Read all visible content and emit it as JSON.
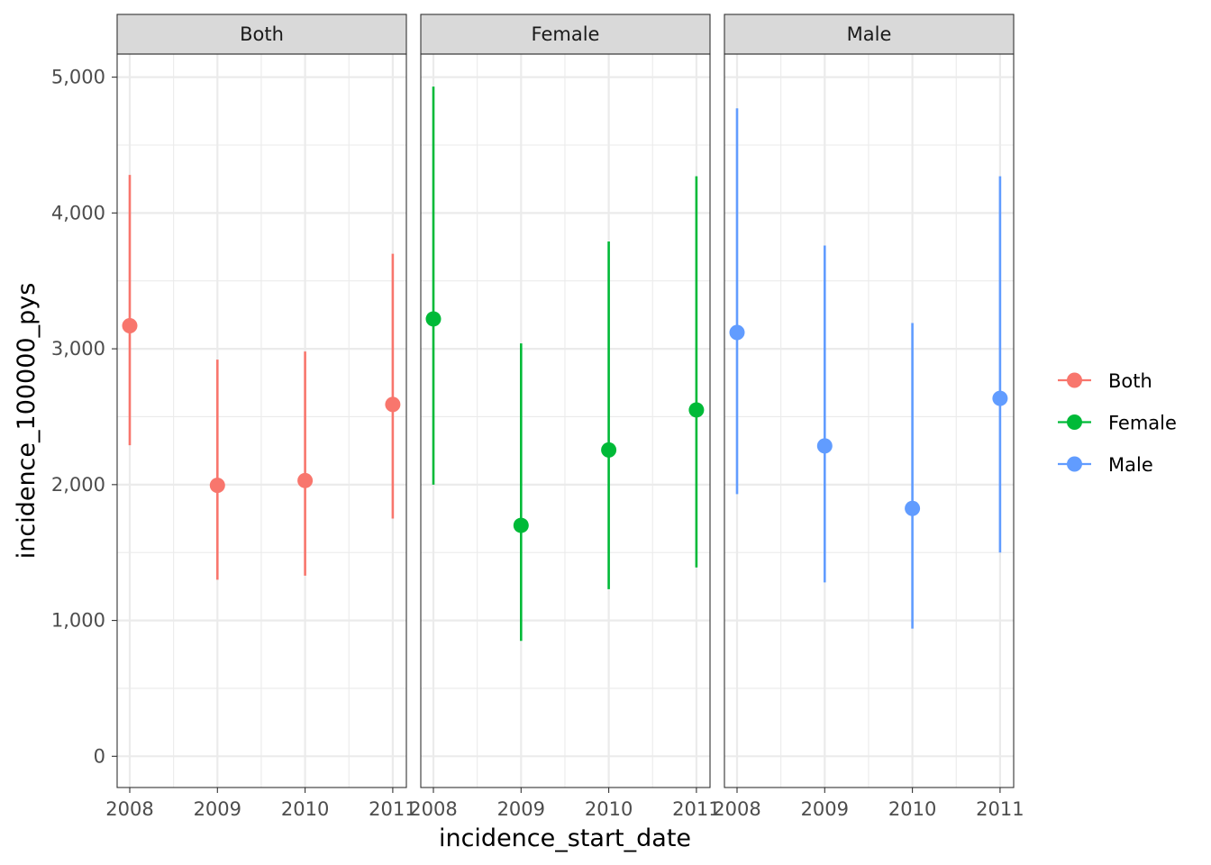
{
  "chart_data": {
    "type": "scatter",
    "xlabel": "incidence_start_date",
    "ylabel": "incidence_100000_pys",
    "ylim": [
      -230,
      5170
    ],
    "yticks": [
      0,
      1000,
      2000,
      3000,
      4000,
      5000
    ],
    "ytick_labels": [
      "0",
      "1,000",
      "2,000",
      "3,000",
      "4,000",
      "5,000"
    ],
    "x": [
      "2008",
      "2009",
      "2010",
      "2011"
    ],
    "xtick_labels": [
      "2008",
      "2009",
      "2010",
      "2011"
    ],
    "facets": [
      {
        "label": "Both",
        "color": "#F8766D",
        "points": [
          {
            "x": "2008",
            "y": 3170,
            "lower": 2290,
            "upper": 4280
          },
          {
            "x": "2009",
            "y": 1995,
            "lower": 1300,
            "upper": 2920
          },
          {
            "x": "2010",
            "y": 2030,
            "lower": 1330,
            "upper": 2980
          },
          {
            "x": "2011",
            "y": 2590,
            "lower": 1750,
            "upper": 3700
          }
        ]
      },
      {
        "label": "Female",
        "color": "#00BA38",
        "points": [
          {
            "x": "2008",
            "y": 3220,
            "lower": 2000,
            "upper": 4930
          },
          {
            "x": "2009",
            "y": 1700,
            "lower": 850,
            "upper": 3040
          },
          {
            "x": "2010",
            "y": 2255,
            "lower": 1230,
            "upper": 3790
          },
          {
            "x": "2011",
            "y": 2550,
            "lower": 1390,
            "upper": 4270
          }
        ]
      },
      {
        "label": "Male",
        "color": "#619CFF",
        "points": [
          {
            "x": "2008",
            "y": 3120,
            "lower": 1930,
            "upper": 4770
          },
          {
            "x": "2009",
            "y": 2285,
            "lower": 1280,
            "upper": 3760
          },
          {
            "x": "2010",
            "y": 1825,
            "lower": 940,
            "upper": 3190
          },
          {
            "x": "2011",
            "y": 2635,
            "lower": 1500,
            "upper": 4270
          }
        ]
      }
    ],
    "legend": {
      "position": "right",
      "entries": [
        {
          "label": "Both",
          "color": "#F8766D"
        },
        {
          "label": "Female",
          "color": "#00BA38"
        },
        {
          "label": "Male",
          "color": "#619CFF"
        }
      ]
    },
    "grid": true
  }
}
